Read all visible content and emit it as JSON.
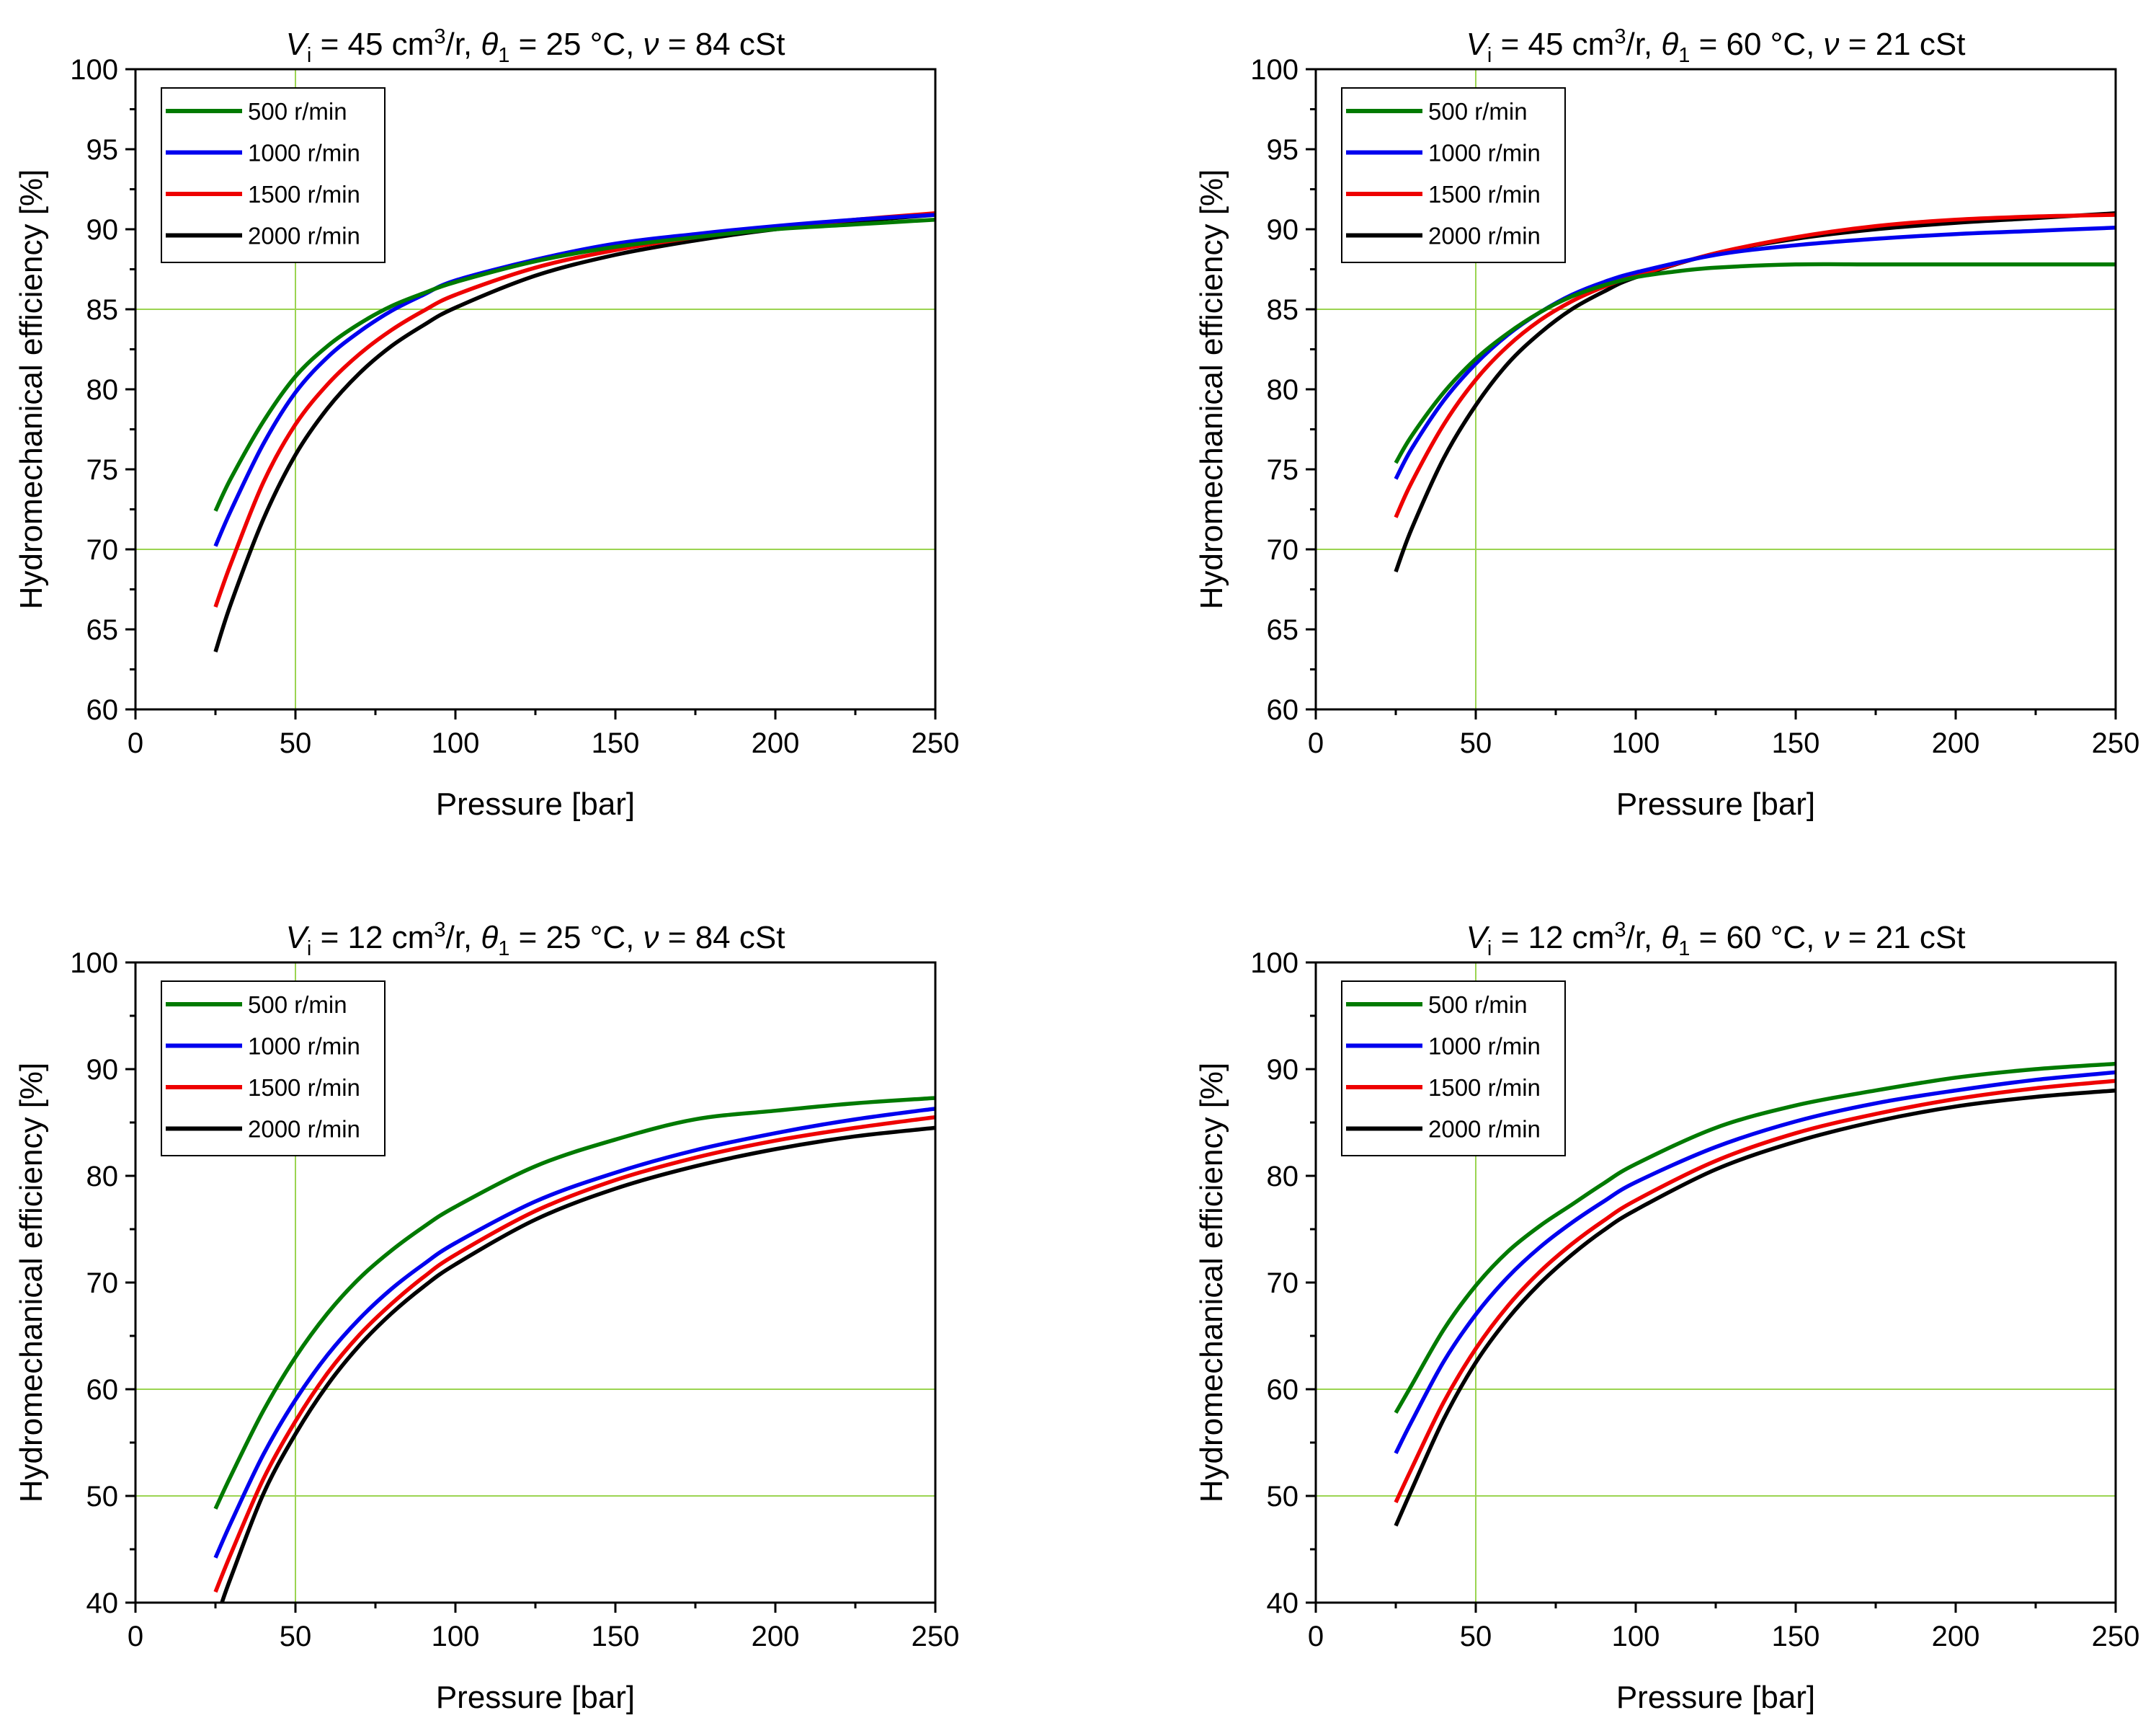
{
  "colors": {
    "s500": "#007a00",
    "s1000": "#0000ee",
    "s1500": "#ee0000",
    "s2000": "#000000",
    "ref_line": "#9bd451",
    "axis": "#000000"
  },
  "chart_data": [
    {
      "type": "line",
      "title": {
        "v": "V",
        "v_sub": "i",
        "mid1": " = 45 cm",
        "sup": "3",
        "mid2": "/r, ",
        "theta": "θ",
        "theta_sub": "1",
        "mid3": " = 25 °C, ",
        "nu": "ν",
        "tail": " = 84 cSt"
      },
      "xlabel": "Pressure [bar]",
      "ylabel": "Hydromechanical efficiency [%]",
      "xlim": [
        0,
        250
      ],
      "ylim": [
        60,
        100
      ],
      "xticks": [
        0,
        50,
        100,
        150,
        200,
        250
      ],
      "yticks": [
        60,
        65,
        70,
        75,
        80,
        85,
        90,
        95,
        100
      ],
      "reference_lines": {
        "x": [
          50
        ],
        "y": [
          70,
          85
        ]
      },
      "legend_position": "top-left",
      "series": [
        {
          "name": "500 r/min",
          "color_key": "s500",
          "x": [
            25,
            30,
            40,
            50,
            60,
            70,
            80,
            90,
            100,
            125,
            150,
            175,
            200,
            225,
            250
          ],
          "y": [
            72.4,
            74.5,
            78.0,
            80.8,
            82.7,
            84.1,
            85.2,
            86.0,
            86.7,
            88.0,
            88.9,
            89.5,
            90.0,
            90.3,
            90.6
          ]
        },
        {
          "name": "1000 r/min",
          "color_key": "s1000",
          "x": [
            25,
            30,
            40,
            50,
            60,
            70,
            80,
            90,
            100,
            125,
            150,
            175,
            200,
            225,
            250
          ],
          "y": [
            70.2,
            72.5,
            76.6,
            79.8,
            82.0,
            83.6,
            84.9,
            85.9,
            86.8,
            88.1,
            89.1,
            89.7,
            90.2,
            90.6,
            90.9
          ]
        },
        {
          "name": "1500 r/min",
          "color_key": "s1500",
          "x": [
            25,
            30,
            40,
            50,
            60,
            70,
            80,
            90,
            100,
            125,
            150,
            175,
            200,
            225,
            250
          ],
          "y": [
            66.4,
            69.2,
            74.2,
            77.8,
            80.3,
            82.2,
            83.7,
            84.9,
            85.9,
            87.6,
            88.7,
            89.5,
            90.1,
            90.6,
            91.0
          ]
        },
        {
          "name": "2000 r/min",
          "color_key": "s2000",
          "x": [
            25,
            30,
            40,
            50,
            60,
            70,
            80,
            90,
            100,
            125,
            150,
            175,
            200,
            225,
            250
          ],
          "y": [
            63.6,
            66.7,
            71.9,
            75.9,
            78.8,
            81.0,
            82.7,
            84.0,
            85.1,
            87.1,
            88.4,
            89.3,
            90.0,
            90.5,
            90.9
          ]
        }
      ]
    },
    {
      "type": "line",
      "title": {
        "v": "V",
        "v_sub": "i",
        "mid1": " = 45 cm",
        "sup": "3",
        "mid2": "/r, ",
        "theta": "θ",
        "theta_sub": "1",
        "mid3": " = 60 °C, ",
        "nu": "ν",
        "tail": " = 21 cSt"
      },
      "xlabel": "Pressure [bar]",
      "ylabel": "Hydromechanical efficiency [%]",
      "xlim": [
        0,
        250
      ],
      "ylim": [
        60,
        100
      ],
      "xticks": [
        0,
        50,
        100,
        150,
        200,
        250
      ],
      "yticks": [
        60,
        65,
        70,
        75,
        80,
        85,
        90,
        95,
        100
      ],
      "reference_lines": {
        "x": [
          50
        ],
        "y": [
          70,
          85
        ]
      },
      "legend_position": "top-left",
      "series": [
        {
          "name": "500 r/min",
          "color_key": "s500",
          "x": [
            25,
            30,
            40,
            50,
            60,
            70,
            80,
            90,
            100,
            110,
            125,
            150,
            175,
            200,
            225,
            250
          ],
          "y": [
            75.4,
            77.1,
            79.8,
            81.9,
            83.5,
            84.8,
            85.8,
            86.5,
            87.0,
            87.3,
            87.6,
            87.8,
            87.8,
            87.8,
            87.8,
            87.8
          ]
        },
        {
          "name": "1000 r/min",
          "color_key": "s1000",
          "x": [
            25,
            30,
            40,
            50,
            60,
            70,
            80,
            90,
            100,
            125,
            150,
            175,
            200,
            225,
            250
          ],
          "y": [
            74.4,
            76.3,
            79.3,
            81.6,
            83.4,
            84.8,
            85.9,
            86.7,
            87.3,
            88.4,
            89.0,
            89.4,
            89.7,
            89.9,
            90.1
          ]
        },
        {
          "name": "1500 r/min",
          "color_key": "s1500",
          "x": [
            25,
            30,
            40,
            50,
            60,
            70,
            80,
            90,
            100,
            125,
            150,
            175,
            200,
            225,
            250
          ],
          "y": [
            72.0,
            74.2,
            77.8,
            80.6,
            82.7,
            84.3,
            85.5,
            86.4,
            87.1,
            88.5,
            89.5,
            90.2,
            90.6,
            90.8,
            90.9
          ]
        },
        {
          "name": "2000 r/min",
          "color_key": "s2000",
          "x": [
            25,
            30,
            40,
            50,
            60,
            70,
            80,
            90,
            100,
            125,
            150,
            175,
            200,
            225,
            250
          ],
          "y": [
            68.6,
            71.3,
            75.7,
            79.0,
            81.6,
            83.5,
            85.0,
            86.1,
            87.0,
            88.5,
            89.4,
            90.0,
            90.4,
            90.7,
            91.0
          ]
        }
      ]
    },
    {
      "type": "line",
      "title": {
        "v": "V",
        "v_sub": "i",
        "mid1": " = 12 cm",
        "sup": "3",
        "mid2": "/r, ",
        "theta": "θ",
        "theta_sub": "1",
        "mid3": " = 25 °C, ",
        "nu": "ν",
        "tail": " = 84 cSt"
      },
      "xlabel": "Pressure [bar]",
      "ylabel": "Hydromechanical efficiency [%]",
      "xlim": [
        0,
        250
      ],
      "ylim": [
        40,
        100
      ],
      "xticks": [
        0,
        50,
        100,
        150,
        200,
        250
      ],
      "yticks": [
        40,
        50,
        60,
        70,
        80,
        90,
        100
      ],
      "reference_lines": {
        "x": [
          50
        ],
        "y": [
          50,
          60
        ]
      },
      "legend_position": "top-left",
      "series": [
        {
          "name": "500 r/min",
          "color_key": "s500",
          "x": [
            25,
            30,
            40,
            50,
            60,
            70,
            80,
            90,
            100,
            125,
            150,
            175,
            200,
            225,
            250
          ],
          "y": [
            48.8,
            52.0,
            58.0,
            63.0,
            67.1,
            70.4,
            73.0,
            75.2,
            77.1,
            80.9,
            83.4,
            85.3,
            86.1,
            86.8,
            87.3
          ]
        },
        {
          "name": "1000 r/min",
          "color_key": "s1000",
          "x": [
            25,
            30,
            40,
            50,
            60,
            70,
            80,
            90,
            100,
            125,
            150,
            175,
            200,
            225,
            250
          ],
          "y": [
            44.2,
            47.6,
            53.9,
            59.0,
            63.2,
            66.6,
            69.4,
            71.7,
            73.7,
            77.6,
            80.3,
            82.4,
            84.0,
            85.3,
            86.3
          ]
        },
        {
          "name": "1500 r/min",
          "color_key": "s1500",
          "x": [
            25,
            30,
            40,
            50,
            60,
            70,
            80,
            90,
            100,
            125,
            150,
            175,
            200,
            225,
            250
          ],
          "y": [
            41.0,
            44.7,
            51.6,
            57.0,
            61.5,
            65.1,
            68.0,
            70.5,
            72.6,
            76.7,
            79.6,
            81.7,
            83.3,
            84.5,
            85.5
          ]
        },
        {
          "name": "2000 r/min",
          "color_key": "s2000",
          "x": [
            27,
            30,
            40,
            50,
            60,
            70,
            80,
            90,
            100,
            125,
            150,
            175,
            200,
            225,
            250
          ],
          "y": [
            40.0,
            42.5,
            50.2,
            55.8,
            60.4,
            64.1,
            67.1,
            69.6,
            71.7,
            75.9,
            78.8,
            80.9,
            82.5,
            83.7,
            84.5
          ]
        }
      ]
    },
    {
      "type": "line",
      "title": {
        "v": "V",
        "v_sub": "i",
        "mid1": " = 12 cm",
        "sup": "3",
        "mid2": "/r, ",
        "theta": "θ",
        "theta_sub": "1",
        "mid3": " = 60 °C, ",
        "nu": "ν",
        "tail": " = 21 cSt"
      },
      "xlabel": "Pressure [bar]",
      "ylabel": "Hydromechanical efficiency [%]",
      "xlim": [
        0,
        250
      ],
      "ylim": [
        40,
        100
      ],
      "xticks": [
        0,
        50,
        100,
        150,
        200,
        250
      ],
      "yticks": [
        40,
        50,
        60,
        70,
        80,
        90,
        100
      ],
      "reference_lines": {
        "x": [
          50
        ],
        "y": [
          50,
          60
        ]
      },
      "legend_position": "top-left",
      "series": [
        {
          "name": "500 r/min",
          "color_key": "s500",
          "x": [
            25,
            30,
            40,
            50,
            60,
            70,
            80,
            90,
            100,
            125,
            150,
            175,
            200,
            225,
            250
          ],
          "y": [
            57.8,
            60.4,
            65.6,
            69.7,
            72.9,
            75.3,
            77.3,
            79.3,
            81.1,
            84.5,
            86.6,
            88.0,
            89.2,
            90.0,
            90.5
          ]
        },
        {
          "name": "1000 r/min",
          "color_key": "s1000",
          "x": [
            25,
            30,
            40,
            50,
            60,
            70,
            80,
            90,
            100,
            125,
            150,
            175,
            200,
            225,
            250
          ],
          "y": [
            54.0,
            57.0,
            62.6,
            67.0,
            70.5,
            73.3,
            75.6,
            77.6,
            79.4,
            82.7,
            85.1,
            86.8,
            88.0,
            89.0,
            89.7
          ]
        },
        {
          "name": "1500 r/min",
          "color_key": "s1500",
          "x": [
            25,
            30,
            40,
            50,
            60,
            70,
            80,
            90,
            100,
            125,
            150,
            175,
            200,
            225,
            250
          ],
          "y": [
            49.4,
            52.6,
            58.8,
            63.8,
            67.8,
            71.0,
            73.6,
            75.8,
            77.7,
            81.4,
            84.0,
            85.8,
            87.2,
            88.2,
            88.9
          ]
        },
        {
          "name": "2000 r/min",
          "color_key": "s2000",
          "x": [
            25,
            30,
            40,
            50,
            60,
            70,
            80,
            90,
            100,
            125,
            150,
            175,
            200,
            225,
            250
          ],
          "y": [
            47.2,
            50.6,
            57.2,
            62.5,
            66.6,
            69.9,
            72.6,
            74.9,
            76.8,
            80.6,
            83.2,
            85.1,
            86.5,
            87.4,
            88.0
          ]
        }
      ]
    }
  ]
}
